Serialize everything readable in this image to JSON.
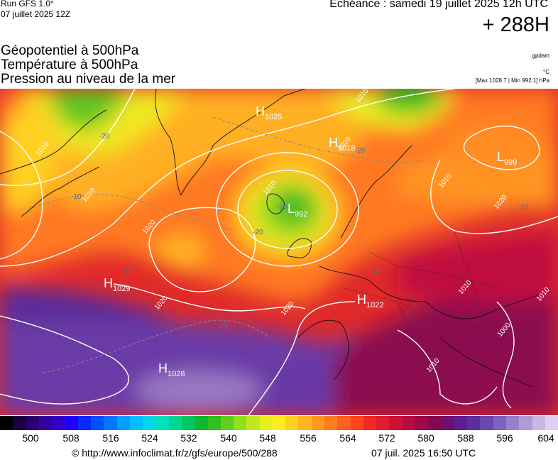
{
  "header": {
    "run": "Run GFS 1.0°",
    "run_date": "07 juillet 2025 12Z",
    "valid": "Echéance : samedi 19 juillet 2025 12h UTC",
    "lead": "+ 288H"
  },
  "titles": {
    "line1": "Géopotentiel à 500hPa",
    "line2": "Température à 500hPa",
    "line3": "Pression au niveau de la mer"
  },
  "units": {
    "geopotential": "gpdam",
    "temperature": "°C",
    "pressure_range": "[Max 1028.7 | Min 992.1] hPa"
  },
  "map_labels": {
    "centers": [
      {
        "letter": "H",
        "value": "1025"
      },
      {
        "letter": "H",
        "value": "1018"
      },
      {
        "letter": "L",
        "value": "999"
      },
      {
        "letter": "L",
        "value": "992"
      },
      {
        "letter": "H",
        "value": "1029"
      },
      {
        "letter": "H",
        "value": "1022"
      },
      {
        "letter": "H",
        "value": "1028"
      }
    ],
    "isobars": [
      "1010",
      "1010",
      "1010",
      "1020",
      "1020",
      "1020",
      "1010",
      "1010",
      "1010",
      "1000",
      "1010",
      "1010",
      "1020",
      "1020"
    ],
    "isotherms": [
      "-20",
      "-20",
      "-20",
      "-20",
      "-10",
      "-10",
      "-10",
      "-10",
      "-10"
    ]
  },
  "scale": {
    "colors": [
      "#000000",
      "#1a0040",
      "#2a0070",
      "#3500a0",
      "#3000c8",
      "#1e00ff",
      "#0a2bff",
      "#0050ff",
      "#0078ff",
      "#00a0ff",
      "#00c0ff",
      "#00d8e8",
      "#00e0b8",
      "#00d890",
      "#00c860",
      "#10b830",
      "#30c020",
      "#60d020",
      "#90e020",
      "#c0e820",
      "#e8f020",
      "#ffee20",
      "#ffd020",
      "#ffb420",
      "#ff9820",
      "#ff7c20",
      "#ff6020",
      "#ff4420",
      "#f02828",
      "#e01c30",
      "#cc1038",
      "#b40c40",
      "#9c0848",
      "#880650",
      "#6e1070",
      "#5a1e90",
      "#5a30a0",
      "#6a48b0",
      "#8060c0",
      "#9880cc",
      "#b09ad8",
      "#c8b8e4",
      "#e0d0f0"
    ],
    "ticks": [
      "500",
      "508",
      "516",
      "524",
      "532",
      "540",
      "548",
      "556",
      "564",
      "572",
      "580",
      "588",
      "596",
      "604"
    ]
  },
  "footer": {
    "source": "© http://www.infoclimat.fr/z/gfs/europe/500/288",
    "generated": "07 juil. 2025 16:50 UTC"
  }
}
